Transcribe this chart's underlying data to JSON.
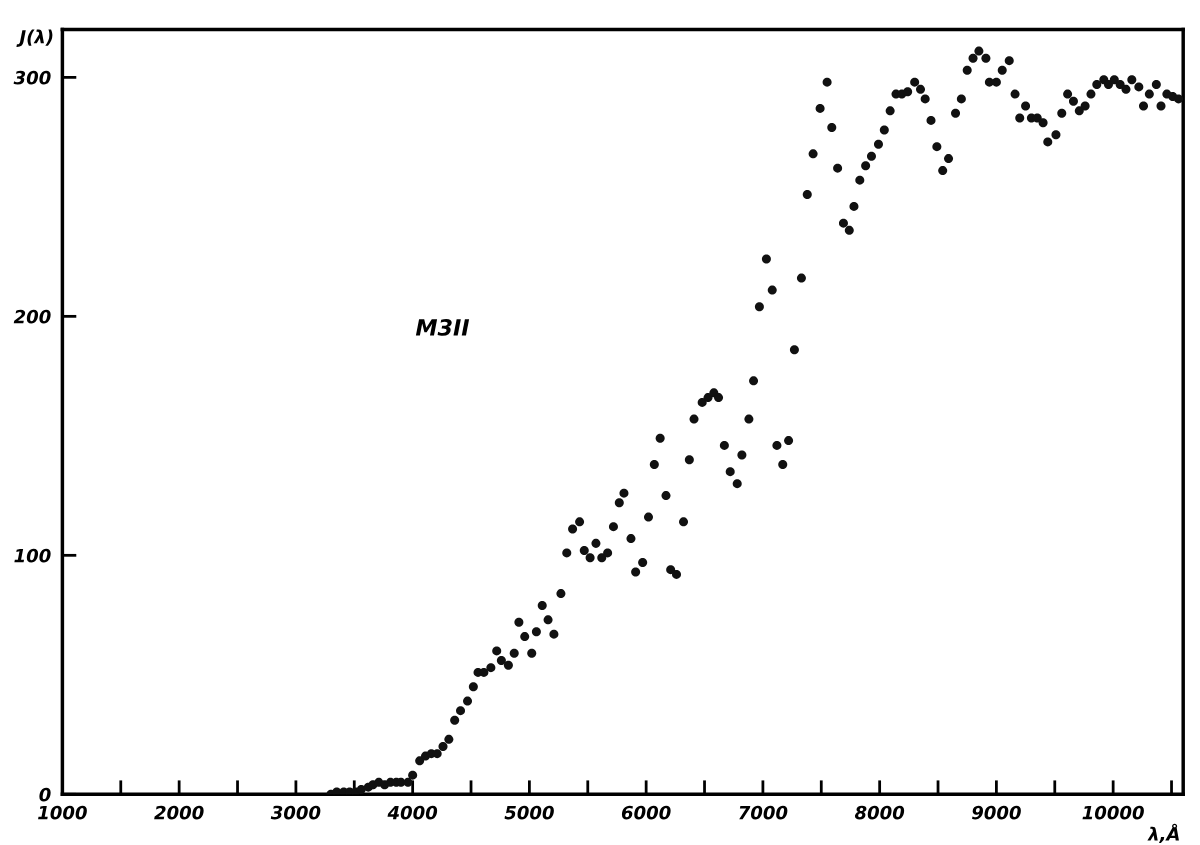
{
  "chart_data": {
    "type": "scatter",
    "xlabel": "λ,Å",
    "ylabel": "J(λ)",
    "annotations": [
      "M3II"
    ],
    "xlim": [
      1000,
      10600
    ],
    "ylim": [
      0,
      320
    ],
    "xticks": [
      1000,
      {
        "value": 1500,
        "label": null
      },
      2000,
      {
        "value": 2500,
        "label": null
      },
      3000,
      {
        "value": 3500,
        "label": null
      },
      4000,
      {
        "value": 4500,
        "label": null
      },
      5000,
      {
        "value": 5500,
        "label": null
      },
      6000,
      {
        "value": 6500,
        "label": null
      },
      7000,
      {
        "value": 7500,
        "label": null
      },
      8000,
      {
        "value": 8500,
        "label": null
      },
      9000,
      {
        "value": 9500,
        "label": null
      },
      10000,
      {
        "value": 10500,
        "label": null
      }
    ],
    "yticks": [
      0,
      100,
      200,
      300
    ],
    "grid": false,
    "marker": "circle",
    "series": [
      {
        "color": "#111111",
        "x": [
          3300,
          3350,
          3410,
          3460,
          3510,
          3560,
          3620,
          3660,
          3710,
          3760,
          3810,
          3860,
          3900,
          3960,
          4000,
          4060,
          4110,
          4160,
          4210,
          4260,
          4310,
          4360,
          4410,
          4470,
          4520,
          4560,
          4610,
          4670,
          4720,
          4760,
          4820,
          4870,
          4910,
          4960,
          5020,
          5060,
          5110,
          5160,
          5210,
          5270,
          5320,
          5370,
          5430,
          5470,
          5520,
          5570,
          5620,
          5670,
          5720,
          5770,
          5810,
          5870,
          5910,
          5970,
          6020,
          6070,
          6120,
          6170,
          6210,
          6260,
          6320,
          6370,
          6410,
          6480,
          6530,
          6580,
          6620,
          6670,
          6720,
          6780,
          6820,
          6880,
          6920,
          6970,
          7030,
          7080,
          7120,
          7170,
          7220,
          7270,
          7330,
          7380,
          7430,
          7490,
          7550,
          7590,
          7640,
          7690,
          7740,
          7780,
          7830,
          7880,
          7930,
          7990,
          8040,
          8090,
          8140,
          8190,
          8240,
          8300,
          8350,
          8390,
          8440,
          8490,
          8540,
          8590,
          8650,
          8700,
          8750,
          8800,
          8850,
          8910,
          8940,
          9000,
          9050,
          9110,
          9160,
          9200,
          9250,
          9300,
          9350,
          9400,
          9440,
          9510,
          9560,
          9610,
          9660,
          9710,
          9760,
          9810,
          9860,
          9920,
          9960,
          10010,
          10060,
          10110,
          10160,
          10220,
          10260,
          10310,
          10370,
          10410,
          10460,
          10510,
          10560
        ],
        "values": [
          0,
          1,
          1,
          1,
          1,
          2,
          3,
          4,
          5,
          4,
          5,
          5,
          5,
          5,
          8,
          14,
          16,
          17,
          17,
          20,
          23,
          31,
          35,
          39,
          45,
          51,
          51,
          53,
          60,
          56,
          54,
          59,
          72,
          66,
          59,
          68,
          79,
          73,
          67,
          84,
          101,
          111,
          114,
          102,
          99,
          105,
          99,
          101,
          112,
          122,
          126,
          107,
          93,
          97,
          116,
          138,
          149,
          125,
          94,
          92,
          114,
          140,
          157,
          164,
          166,
          168,
          166,
          146,
          135,
          130,
          142,
          157,
          173,
          204,
          224,
          211,
          146,
          138,
          148,
          186,
          216,
          251,
          268,
          287,
          298,
          279,
          262,
          239,
          236,
          246,
          257,
          263,
          267,
          272,
          278,
          286,
          293,
          293,
          294,
          298,
          295,
          291,
          282,
          271,
          261,
          266,
          285,
          291,
          303,
          308,
          311,
          308,
          298,
          298,
          303,
          307,
          293,
          283,
          288,
          283,
          283,
          281,
          273,
          276,
          285,
          293,
          290,
          286,
          288,
          293,
          297,
          299,
          297,
          299,
          297,
          295,
          299,
          296,
          288,
          293,
          297,
          288,
          293,
          292,
          291
        ]
      }
    ]
  }
}
